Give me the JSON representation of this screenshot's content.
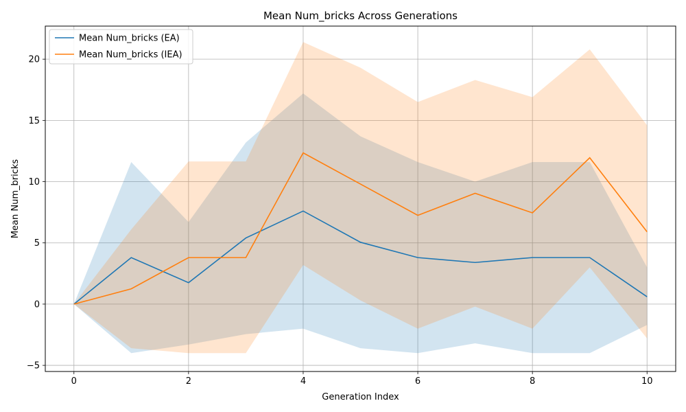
{
  "chart_data": {
    "type": "line",
    "title": "Mean Num_bricks Across Generations",
    "xlabel": "Generation Index",
    "ylabel": "Mean Num_bricks",
    "xlim": [
      -0.5,
      10.5
    ],
    "ylim": [
      -5.5,
      22.7
    ],
    "x_ticks": [
      0,
      2,
      4,
      6,
      8,
      10
    ],
    "y_ticks": [
      -5,
      0,
      5,
      10,
      15,
      20
    ],
    "grid": true,
    "legend_position": "top-left",
    "x": [
      0,
      1,
      2,
      3,
      4,
      5,
      6,
      7,
      8,
      9,
      10
    ],
    "series": [
      {
        "name": "Mean Num_bricks (EA)",
        "color": "#1f77b4",
        "band_color": "#1f77b4",
        "values": [
          0,
          3.8,
          1.75,
          5.4,
          7.6,
          5.05,
          3.8,
          3.4,
          3.8,
          3.8,
          0.6
        ],
        "upper": [
          0,
          11.6,
          6.7,
          13.2,
          17.2,
          13.7,
          11.6,
          10.0,
          11.6,
          11.6,
          3.0
        ],
        "lower": [
          0,
          -4.0,
          -3.3,
          -2.45,
          -2.0,
          -3.6,
          -4.0,
          -3.2,
          -4.0,
          -4.0,
          -1.7
        ]
      },
      {
        "name": "Mean Num_bricks (IEA)",
        "color": "#ff7f0e",
        "band_color": "#ff7f0e",
        "values": [
          0,
          1.25,
          3.8,
          3.8,
          12.35,
          9.8,
          7.25,
          9.05,
          7.45,
          11.95,
          5.9
        ],
        "upper": [
          0,
          6.1,
          11.65,
          11.65,
          21.4,
          19.3,
          16.5,
          18.3,
          16.9,
          20.8,
          14.6
        ],
        "lower": [
          0,
          -3.6,
          -4.0,
          -4.0,
          3.2,
          0.3,
          -2.0,
          -0.2,
          -2.0,
          3.0,
          -2.8
        ]
      }
    ]
  }
}
